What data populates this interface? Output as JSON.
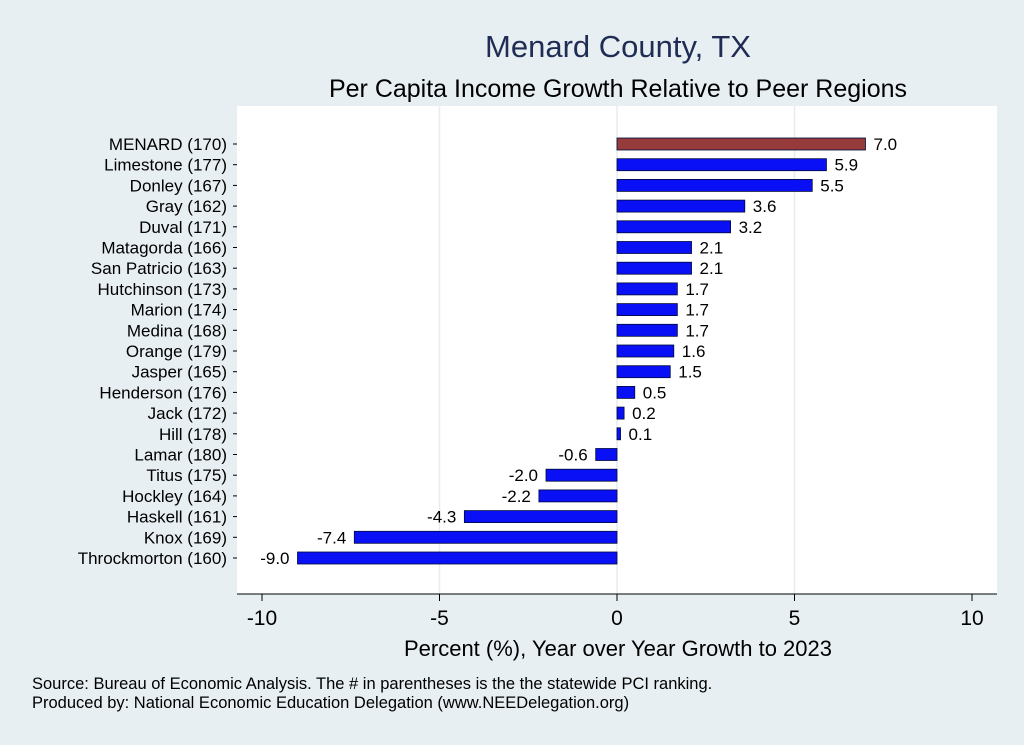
{
  "chart_data": {
    "type": "bar",
    "orientation": "horizontal",
    "title": "Menard County, TX",
    "subtitle": "Per Capita Income Growth Relative to Peer Regions",
    "xlabel": "Percent (%), Year over Year Growth to 2023",
    "xlim": [
      -10,
      10
    ],
    "xticks": [
      "-10",
      "-5",
      "0",
      "5",
      "10"
    ],
    "grid": "vertical",
    "highlight_color": "#963a3c",
    "bar_color": "#0a10f5",
    "categories": [
      "MENARD (170)",
      "Limestone (177)",
      "Donley (167)",
      "Gray (162)",
      "Duval (171)",
      "Matagorda (166)",
      "San Patricio (163)",
      "Hutchinson (173)",
      "Marion (174)",
      "Medina (168)",
      "Orange (179)",
      "Jasper (165)",
      "Henderson (176)",
      "Jack (172)",
      "Hill (178)",
      "Lamar (180)",
      "Titus (175)",
      "Hockley (164)",
      "Haskell (161)",
      "Knox (169)",
      "Throckmorton (160)"
    ],
    "values": [
      7.0,
      5.9,
      5.5,
      3.6,
      3.2,
      2.1,
      2.1,
      1.7,
      1.7,
      1.7,
      1.6,
      1.5,
      0.5,
      0.2,
      0.1,
      -0.6,
      -2.0,
      -2.2,
      -4.3,
      -7.4,
      -9.0
    ],
    "value_labels": [
      "7.0",
      "5.9",
      "5.5",
      "3.6",
      "3.2",
      "2.1",
      "2.1",
      "1.7",
      "1.7",
      "1.7",
      "1.6",
      "1.5",
      "0.5",
      "0.2",
      "0.1",
      "-0.6",
      "-2.0",
      "-2.2",
      "-4.3",
      "-7.4",
      "-9.0"
    ],
    "highlight_index": 0
  },
  "footer": {
    "source": "Source: Bureau of Economic Analysis. The # in parentheses is the the statewide PCI ranking.",
    "produced": "Produced by: National Economic Education Delegation (www.NEEDelegation.org)"
  }
}
